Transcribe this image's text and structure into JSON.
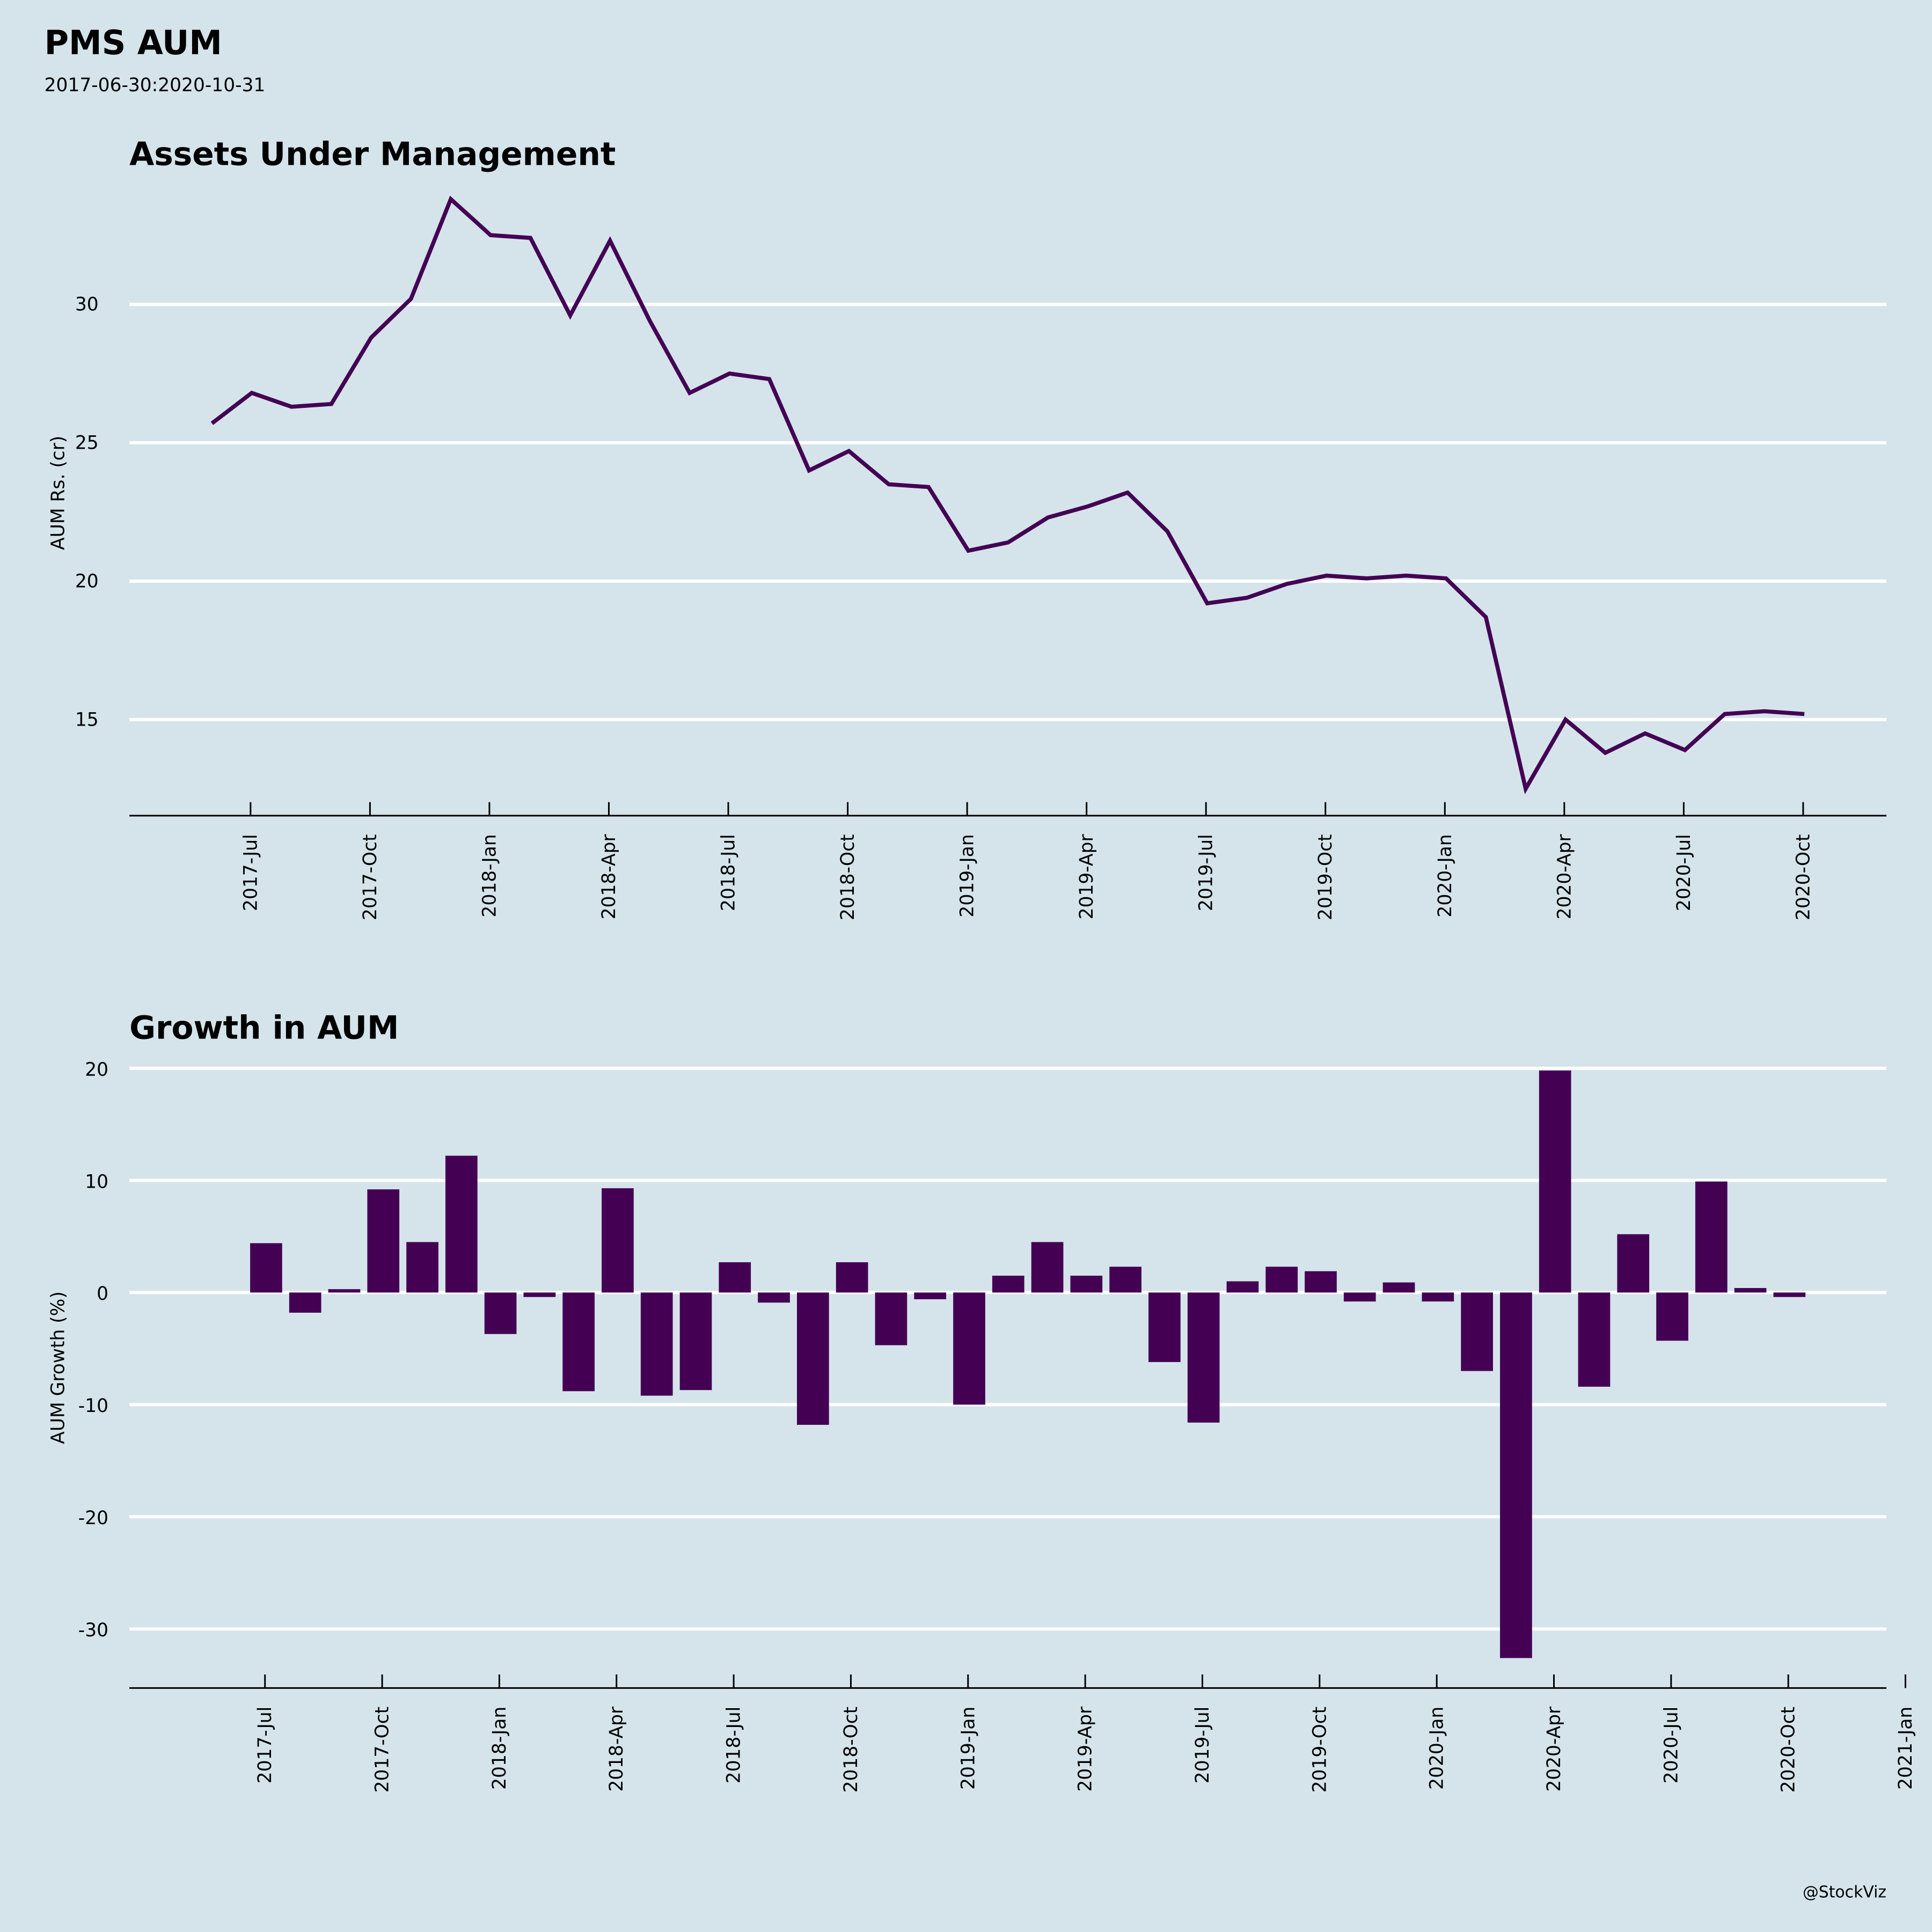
{
  "title": "PMS AUM",
  "subtitle": "2017-06-30:2020-10-31",
  "credit": "@StockViz",
  "colors": {
    "background": "#d5e4eb",
    "series": "#440154",
    "grid": "#ffffff"
  },
  "chart_data": [
    {
      "type": "line",
      "title": "Assets Under Management",
      "xlabel": "",
      "ylabel": "AUM Rs. (cr)",
      "x": [
        "2017-06",
        "2017-07",
        "2017-08",
        "2017-09",
        "2017-10",
        "2017-11",
        "2017-12",
        "2018-01",
        "2018-02",
        "2018-03",
        "2018-04",
        "2018-05",
        "2018-06",
        "2018-07",
        "2018-08",
        "2018-09",
        "2018-10",
        "2018-11",
        "2018-12",
        "2019-01",
        "2019-02",
        "2019-03",
        "2019-04",
        "2019-05",
        "2019-06",
        "2019-07",
        "2019-08",
        "2019-09",
        "2019-10",
        "2019-11",
        "2019-12",
        "2020-01",
        "2020-02",
        "2020-03",
        "2020-04",
        "2020-05",
        "2020-06",
        "2020-07",
        "2020-08",
        "2020-09",
        "2020-10"
      ],
      "series": [
        {
          "name": "AUM",
          "values": [
            25.7,
            26.8,
            26.3,
            26.4,
            28.8,
            30.2,
            33.8,
            32.5,
            32.4,
            29.6,
            32.3,
            29.4,
            26.8,
            27.5,
            27.3,
            24.0,
            24.7,
            23.5,
            23.4,
            21.1,
            21.4,
            22.3,
            22.7,
            23.2,
            21.8,
            19.2,
            19.4,
            19.9,
            20.2,
            20.1,
            20.2,
            20.1,
            18.7,
            12.5,
            15.0,
            13.8,
            14.5,
            13.9,
            15.2,
            15.3,
            15.2
          ]
        }
      ],
      "yticks": [
        15,
        20,
        25,
        30
      ],
      "ylim": [
        11.5,
        35
      ],
      "xticks": [
        "2017-Jul",
        "2017-Oct",
        "2018-Jan",
        "2018-Apr",
        "2018-Jul",
        "2018-Oct",
        "2019-Jan",
        "2019-Apr",
        "2019-Jul",
        "2019-Oct",
        "2020-Jan",
        "2020-Apr",
        "2020-Jul",
        "2020-Oct"
      ],
      "grid": "horizontal"
    },
    {
      "type": "bar",
      "title": "Growth in AUM",
      "xlabel": "",
      "ylabel": "AUM Growth (%)",
      "x": [
        "2017-07",
        "2017-08",
        "2017-09",
        "2017-10",
        "2017-11",
        "2017-12",
        "2018-01",
        "2018-02",
        "2018-03",
        "2018-04",
        "2018-05",
        "2018-06",
        "2018-07",
        "2018-08",
        "2018-09",
        "2018-10",
        "2018-11",
        "2018-12",
        "2019-01",
        "2019-02",
        "2019-03",
        "2019-04",
        "2019-05",
        "2019-06",
        "2019-07",
        "2019-08",
        "2019-09",
        "2019-10",
        "2019-11",
        "2019-12",
        "2020-01",
        "2020-02",
        "2020-03",
        "2020-04",
        "2020-05",
        "2020-06",
        "2020-07",
        "2020-08",
        "2020-09",
        "2020-10"
      ],
      "series": [
        {
          "name": "AUM Growth",
          "values": [
            4.4,
            -1.8,
            0.3,
            9.2,
            4.5,
            12.2,
            -3.7,
            -0.4,
            -8.8,
            9.3,
            -9.2,
            -8.7,
            2.7,
            -0.9,
            -11.8,
            2.7,
            -4.7,
            -0.6,
            -10.0,
            1.5,
            4.5,
            1.5,
            2.3,
            -6.2,
            -11.6,
            1.0,
            2.3,
            1.9,
            -0.8,
            0.9,
            -0.8,
            -7.0,
            -32.6,
            19.8,
            -8.4,
            5.2,
            -4.3,
            9.9,
            0.4,
            -0.4
          ]
        }
      ],
      "yticks": [
        -30,
        -20,
        -10,
        0,
        10,
        20
      ],
      "ylim": [
        -35.5,
        20
      ],
      "xticks": [
        "2017-Jul",
        "2017-Oct",
        "2018-Jan",
        "2018-Apr",
        "2018-Jul",
        "2018-Oct",
        "2019-Jan",
        "2019-Apr",
        "2019-Jul",
        "2019-Oct",
        "2020-Jan",
        "2020-Apr",
        "2020-Jul",
        "2020-Oct",
        "2021-Jan"
      ],
      "grid": "horizontal"
    }
  ]
}
